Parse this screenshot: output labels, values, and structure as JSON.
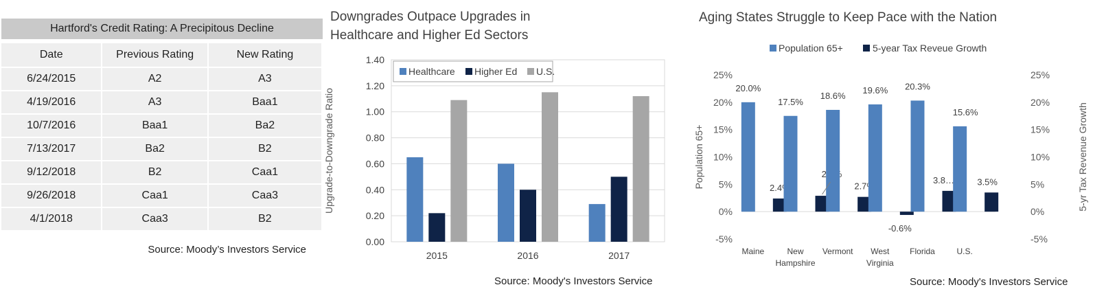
{
  "table": {
    "title": "Hartford's Credit Rating: A Precipitous Decline",
    "headers": [
      "Date",
      "Previous Rating",
      "New Rating"
    ],
    "rows": [
      [
        "6/24/2015",
        "A2",
        "A3"
      ],
      [
        "4/19/2016",
        "A3",
        "Baa1"
      ],
      [
        "10/7/2016",
        "Baa1",
        "Ba2"
      ],
      [
        "7/13/2017",
        "Ba2",
        "B2"
      ],
      [
        "9/12/2018",
        "B2",
        "Caa1"
      ],
      [
        "9/26/2018",
        "Caa1",
        "Caa3"
      ],
      [
        "4/1/2018",
        "Caa3",
        "B2"
      ]
    ],
    "source": "Source: Moody’s Investors Service"
  },
  "chart_data": [
    {
      "type": "bar",
      "title_lines": [
        "Downgrades Outpace Upgrades in",
        "Healthcare and Higher Ed Sectors"
      ],
      "categories": [
        "2015",
        "2016",
        "2017"
      ],
      "series": [
        {
          "name": "Healthcare",
          "color": "#4f81bd",
          "values": [
            0.65,
            0.6,
            0.29
          ]
        },
        {
          "name": "Higher Ed",
          "color": "#0f2347",
          "values": [
            0.22,
            0.4,
            0.5
          ]
        },
        {
          "name": "U.S.",
          "color": "#a6a6a6",
          "values": [
            1.09,
            1.15,
            1.12
          ]
        }
      ],
      "ylabel": "Upgrade-to-Downgrade Ratio",
      "ylim": [
        0,
        1.4
      ],
      "yticks": [
        "0.00",
        "0.20",
        "0.40",
        "0.60",
        "0.80",
        "1.00",
        "1.20",
        "1.40"
      ],
      "grid": true,
      "legend_position": "top-left",
      "source": "Source: Moody's Investors Service"
    },
    {
      "type": "bar",
      "title": "Aging States Struggle to Keep Pace with the Nation",
      "categories": [
        "Maine",
        "New Hampshire",
        "Vermont",
        "West Virginia",
        "Florida",
        "U.S."
      ],
      "category_lines": [
        [
          "Maine"
        ],
        [
          "New",
          "Hampshire"
        ],
        [
          "Vermont"
        ],
        [
          "West",
          "Virginia"
        ],
        [
          "Florida"
        ],
        [
          "U.S."
        ]
      ],
      "series": [
        {
          "name": "Population 65+",
          "color": "#4f81bd",
          "values": [
            20.0,
            17.5,
            18.6,
            19.6,
            20.3,
            15.6
          ],
          "labels": [
            "20.0%",
            "17.5%",
            "18.6%",
            "19.6%",
            "20.3%",
            "15.6%"
          ]
        },
        {
          "name": "5-year Tax Reveue Growth",
          "color": "#0f2347",
          "values": [
            2.4,
            2.9,
            2.7,
            -0.6,
            3.8,
            3.5
          ],
          "labels": [
            "2.4%",
            "2.9%",
            "2.7%",
            "-0.6%",
            "3.8…",
            "3.5%"
          ]
        }
      ],
      "ylabel_left": "Population 65+",
      "ylabel_right": "5-yr Tax Revenue Growth",
      "ylim": [
        -5,
        25
      ],
      "yticks": [
        "-5%",
        "0%",
        "5%",
        "10%",
        "15%",
        "20%",
        "25%"
      ],
      "grid": false,
      "legend_position": "top",
      "source": "Source: Moody's Investors Service"
    }
  ]
}
